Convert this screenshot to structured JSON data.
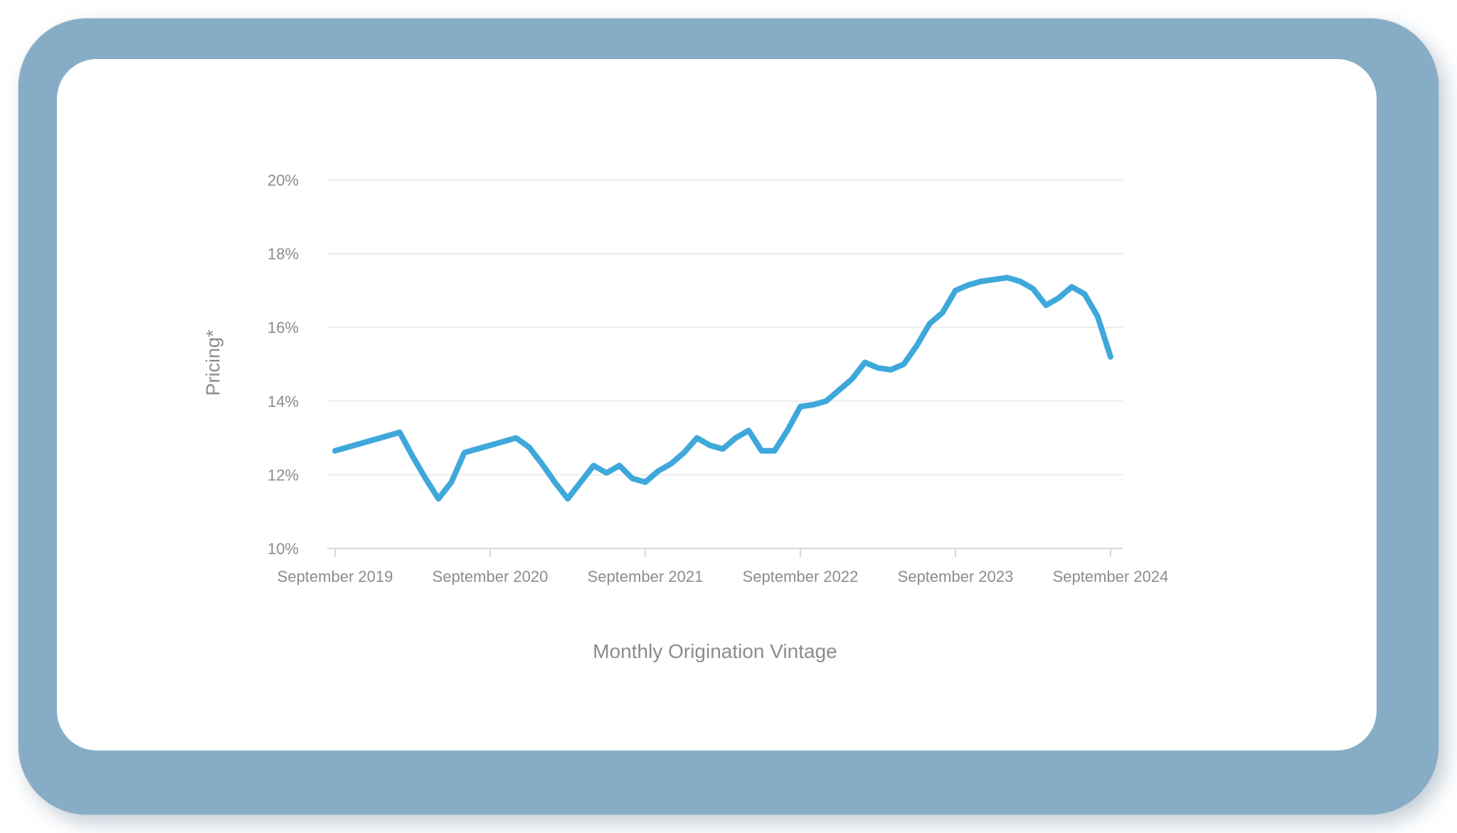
{
  "colors": {
    "frame_blue": "#87adc6",
    "card_background": "#ffffff",
    "gridline": "#ececec",
    "axis": "#d8d8d8",
    "tick_text": "#8c8c8c",
    "title_text": "#8c8c8c"
  },
  "chart_data": {
    "type": "line",
    "title": "",
    "xlabel": "Monthly Origination Vintage",
    "ylabel": "Pricing*",
    "ylim": [
      10,
      20
    ],
    "grid": true,
    "legend": "none",
    "line_color": "#3fa8db",
    "y_tick_values": [
      10,
      12,
      14,
      16,
      18,
      20
    ],
    "y_tick_labels": [
      "10%",
      "12%",
      "14%",
      "16%",
      "18%",
      "20%"
    ],
    "x_tick_labels": [
      "September 2019",
      "September 2020",
      "September 2021",
      "September 2022",
      "September 2023",
      "September 2024"
    ],
    "x_tick_month_indices": [
      0,
      12,
      24,
      36,
      48,
      60
    ],
    "months": [
      "2019-09",
      "2019-10",
      "2019-11",
      "2019-12",
      "2020-01",
      "2020-02",
      "2020-03",
      "2020-04",
      "2020-05",
      "2020-06",
      "2020-07",
      "2020-08",
      "2020-09",
      "2020-10",
      "2020-11",
      "2020-12",
      "2021-01",
      "2021-02",
      "2021-03",
      "2021-04",
      "2021-05",
      "2021-06",
      "2021-07",
      "2021-08",
      "2021-09",
      "2021-10",
      "2021-11",
      "2021-12",
      "2022-01",
      "2022-02",
      "2022-03",
      "2022-04",
      "2022-05",
      "2022-06",
      "2022-07",
      "2022-08",
      "2022-09",
      "2022-10",
      "2022-11",
      "2022-12",
      "2023-01",
      "2023-02",
      "2023-03",
      "2023-04",
      "2023-05",
      "2023-06",
      "2023-07",
      "2023-08",
      "2023-09",
      "2023-10",
      "2023-11",
      "2023-12",
      "2024-01",
      "2024-02",
      "2024-03",
      "2024-04",
      "2024-05",
      "2024-06",
      "2024-07",
      "2024-08",
      "2024-09"
    ],
    "values": [
      12.65,
      12.75,
      12.85,
      12.95,
      13.05,
      13.15,
      12.5,
      11.9,
      11.35,
      11.8,
      12.6,
      12.7,
      12.8,
      12.9,
      13.0,
      12.75,
      12.3,
      11.8,
      11.35,
      11.8,
      12.25,
      12.05,
      12.25,
      11.9,
      11.8,
      12.1,
      12.3,
      12.6,
      13.0,
      12.8,
      12.7,
      13.0,
      13.2,
      12.65,
      12.65,
      13.2,
      13.85,
      13.9,
      14.0,
      14.3,
      14.6,
      15.05,
      14.9,
      14.85,
      15.0,
      15.5,
      16.1,
      16.4,
      17.0,
      17.15,
      17.25,
      17.3,
      17.35,
      17.25,
      17.05,
      16.6,
      16.8,
      17.1,
      16.9,
      16.3,
      15.2
    ]
  }
}
